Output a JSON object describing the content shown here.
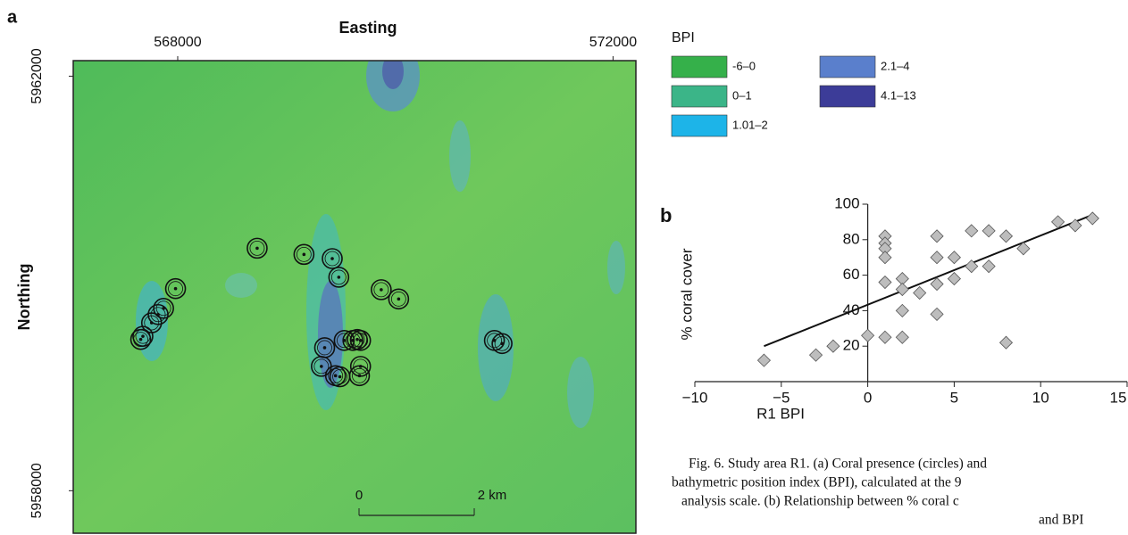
{
  "chart_data": [
    {
      "type": "map",
      "panel_label": "a",
      "x_label": "Easting",
      "y_label": "Northing",
      "xlim": [
        567040,
        572210
      ],
      "ylim": [
        5957590,
        5962150
      ],
      "xticks": [
        568000,
        572000
      ],
      "yticks": [
        5958000,
        5962000
      ],
      "marker_color": "#111111",
      "x": [
        568730,
        569160,
        569420,
        569480,
        567980,
        569870,
        570030,
        567870,
        567820,
        567760,
        567680,
        567660,
        569350,
        569530,
        569610,
        569650,
        569680,
        570910,
        570980,
        569320,
        569450,
        569490,
        569680,
        569670
      ],
      "y": [
        5960340,
        5960280,
        5960240,
        5960060,
        5959950,
        5959940,
        5959850,
        5959760,
        5959700,
        5959620,
        5959490,
        5959460,
        5959380,
        5959450,
        5959450,
        5959460,
        5959450,
        5959450,
        5959420,
        5959200,
        5959110,
        5959100,
        5959200,
        5959110
      ],
      "legend_title": "BPI",
      "legend": [
        {
          "label": "-6–0",
          "color": "#35b04a"
        },
        {
          "label": "0–1",
          "color": "#3bb588"
        },
        {
          "label": "1.01–2",
          "color": "#1db4e8"
        },
        {
          "label": "2.1–4",
          "color": "#5a7fcc"
        },
        {
          "label": "4.1–13",
          "color": "#3c3c98"
        }
      ],
      "scale_bar": [
        "0",
        "2 km"
      ]
    },
    {
      "type": "scatter",
      "panel_label": "b",
      "x_label": "R1 BPI",
      "y_label": "% coral cover",
      "xlim": [
        -10,
        15
      ],
      "ylim": [
        0,
        100
      ],
      "xticks": [
        {
          "value": -10,
          "label": "−10"
        },
        {
          "value": -5,
          "label": "−5"
        },
        0,
        5,
        10,
        15
      ],
      "yticks": [
        20,
        40,
        60,
        80,
        100
      ],
      "marker_color": "#bdbdbd",
      "x": [
        -6,
        -3,
        -2,
        0,
        1,
        2,
        1,
        1,
        1,
        1,
        1,
        2,
        2,
        2,
        3,
        4,
        4,
        4,
        4,
        5,
        5,
        6,
        6,
        7,
        7,
        8,
        8,
        9,
        11,
        12,
        13
      ],
      "y": [
        12,
        15,
        20,
        26,
        25,
        25,
        82,
        78,
        75,
        70,
        56,
        58,
        52,
        40,
        50,
        55,
        70,
        82,
        38,
        58,
        70,
        65,
        85,
        65,
        85,
        82,
        22,
        75,
        90,
        88,
        92
      ],
      "trend_line": {
        "x": [
          -6,
          13
        ],
        "y": [
          20,
          94
        ]
      }
    }
  ],
  "caption": [
    "Fig. 6. Study area R1. (a) Coral presence (circles) and",
    "bathymetric position index (BPI), calculated at the 9",
    "analysis scale. (b) Relationship between % coral c",
    "and BPI"
  ]
}
